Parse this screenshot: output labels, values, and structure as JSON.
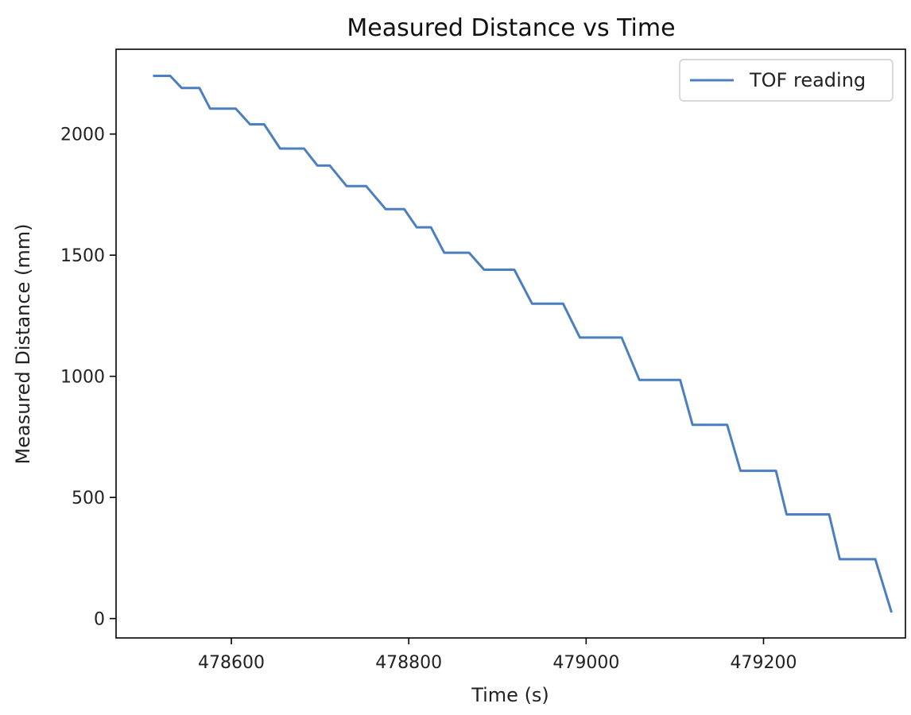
{
  "chart_data": {
    "type": "line",
    "title": "Measured Distance vs Time",
    "xlabel": "Time (s)",
    "ylabel": "Measured Distance (mm)",
    "xlim": [
      478470,
      479360
    ],
    "ylim": [
      -80,
      2350
    ],
    "xticks": [
      478600,
      478800,
      479000,
      479200
    ],
    "xtick_labels": [
      "478600",
      "478800",
      "479000",
      "479200"
    ],
    "yticks": [
      0,
      500,
      1000,
      1500,
      2000
    ],
    "ytick_labels": [
      "0",
      "500",
      "1000",
      "1500",
      "2000"
    ],
    "grid": false,
    "legend_position": "top-right",
    "series": [
      {
        "name": "TOF reading",
        "color": "#4c7fbf",
        "x": [
          478513,
          478531,
          478544,
          478564,
          478576,
          478605,
          478621,
          478637,
          478655,
          478682,
          478697,
          478711,
          478730,
          478752,
          478774,
          478795,
          478809,
          478825,
          478840,
          478868,
          478885,
          478919,
          478939,
          478974,
          478993,
          479040,
          479060,
          479106,
          479120,
          479159,
          479174,
          479214,
          479226,
          479274,
          479286,
          479326,
          479344
        ],
        "y": [
          2240,
          2240,
          2190,
          2190,
          2105,
          2105,
          2040,
          2040,
          1940,
          1940,
          1870,
          1870,
          1785,
          1785,
          1690,
          1690,
          1615,
          1615,
          1510,
          1510,
          1440,
          1440,
          1300,
          1300,
          1160,
          1160,
          985,
          985,
          800,
          800,
          610,
          610,
          430,
          430,
          245,
          245,
          30
        ]
      }
    ]
  }
}
